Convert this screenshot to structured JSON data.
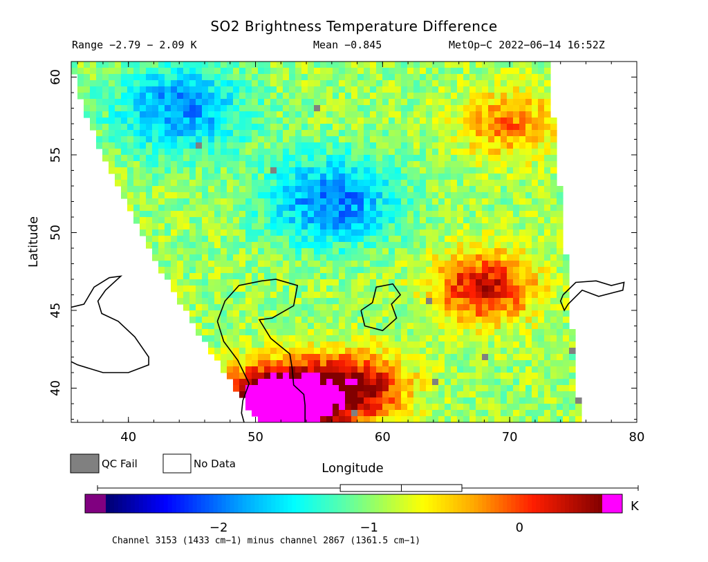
{
  "header": {
    "title": "SO2 Brightness Temperature Difference",
    "range_text": "Range −2.79 − 2.09 K",
    "mean_text": "Mean −0.845",
    "satellite_text": "MetOp−C 2022−06−14 16:52Z"
  },
  "chart_data": {
    "type": "heatmap",
    "title": "SO2 Brightness Temperature Difference",
    "xlabel": "Longitude",
    "ylabel": "Latitude",
    "xlim": [
      35.5,
      80
    ],
    "ylim": [
      37.8,
      61
    ],
    "x_ticks": [
      40,
      50,
      60,
      70,
      80
    ],
    "x_tick_labels": [
      "40",
      "50",
      "60",
      "70",
      "80"
    ],
    "y_ticks": [
      40,
      45,
      50,
      55,
      60
    ],
    "y_tick_labels": [
      "40",
      "45",
      "50",
      "55",
      "60"
    ],
    "value_range": [
      -2.79,
      2.09
    ],
    "mean": -0.845,
    "units": "K",
    "colorbar": {
      "min": -2.75,
      "max": 0.55,
      "ticks": [
        -2,
        -1,
        0
      ],
      "tick_labels": [
        "−2",
        "−1",
        "0"
      ],
      "unit_label": "K",
      "box_stats": {
        "min": -2.75,
        "q1": -1.15,
        "median": -0.9,
        "q3": -0.7,
        "max": 0.55
      }
    },
    "legend": [
      {
        "label": "QC Fail",
        "color": "#808080"
      },
      {
        "label": "No Data",
        "color": "#ffffff"
      }
    ],
    "footnote": "Channel 3153 (1433 cm−1) minus channel 2867 (1361.5 cm−1)",
    "features": [
      {
        "name": "blue region north",
        "lon": 44,
        "lat": 58,
        "value": -1.9
      },
      {
        "name": "blue region center",
        "lon": 56,
        "lat": 52,
        "value": -2.0
      },
      {
        "name": "red region east",
        "lon": 68,
        "lat": 46.5,
        "value": 0.3
      },
      {
        "name": "orange region northeast",
        "lon": 70,
        "lat": 57,
        "value": -0.2
      },
      {
        "name": "red region south",
        "lon": 58,
        "lat": 40,
        "value": 0.4
      },
      {
        "name": "magenta saturated southwest",
        "lon": 52,
        "lat": 39,
        "value": 2.0
      }
    ]
  },
  "colors": {
    "qc_fail": "#808080",
    "below_range": "#800080",
    "above_range": "#ff00ff",
    "coastline": "#000000"
  }
}
